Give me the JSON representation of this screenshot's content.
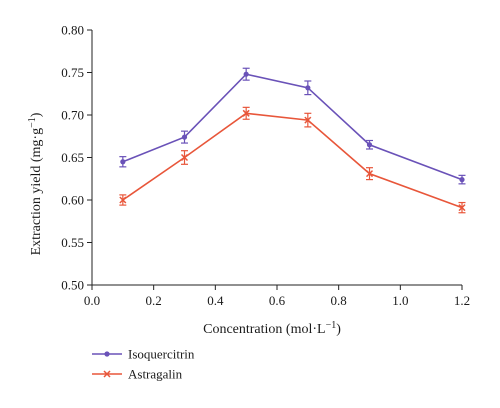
{
  "chart_data": {
    "type": "line",
    "xlabel": "Concentration (mol·L",
    "xlabel_sup": "−1",
    "xlabel_tail": ")",
    "ylabel": "Extraction yield (mg·g",
    "ylabel_sup": "−1",
    "ylabel_tail": ")",
    "xlim": [
      0.0,
      1.2
    ],
    "ylim": [
      0.5,
      0.8
    ],
    "x_ticks": [
      "0.0",
      "0.2",
      "0.4",
      "0.6",
      "0.8",
      "1.0",
      "1.2"
    ],
    "y_ticks": [
      "0.50",
      "0.55",
      "0.60",
      "0.65",
      "0.70",
      "0.75",
      "0.80"
    ],
    "grid": false,
    "legend_position": "bottom-left",
    "series": [
      {
        "name": "Isoquercitrin",
        "color": "#6a52b8",
        "marker": "dot",
        "x": [
          0.1,
          0.3,
          0.5,
          0.7,
          0.9,
          1.2
        ],
        "y": [
          0.645,
          0.674,
          0.748,
          0.732,
          0.665,
          0.624
        ],
        "error": [
          0.006,
          0.007,
          0.007,
          0.008,
          0.005,
          0.005
        ]
      },
      {
        "name": "Astragalin",
        "color": "#e8563a",
        "marker": "x",
        "x": [
          0.1,
          0.3,
          0.5,
          0.7,
          0.9,
          1.2
        ],
        "y": [
          0.6,
          0.65,
          0.702,
          0.694,
          0.631,
          0.591
        ],
        "error": [
          0.006,
          0.008,
          0.007,
          0.008,
          0.007,
          0.006
        ]
      }
    ]
  }
}
